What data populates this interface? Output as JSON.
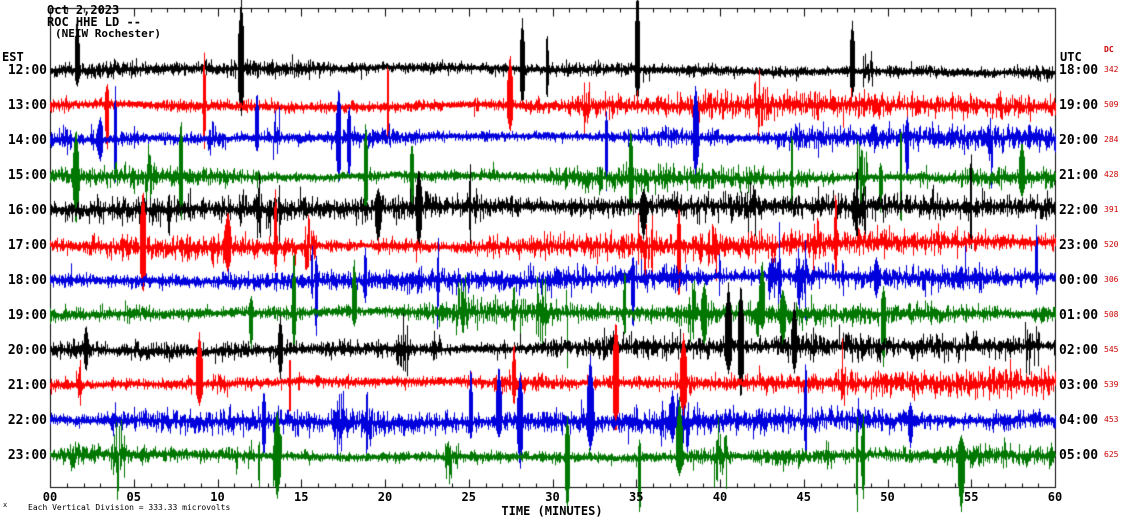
{
  "header": {
    "date": "Oct 2,2023",
    "station": "ROC HHE LD --",
    "location": "(NEIW Rochester)"
  },
  "axes": {
    "left_label": "EST",
    "right_label": "UTC",
    "dc_label": "DC",
    "x_axis_label": "TIME (MINUTES)",
    "x_ticks": [
      "00",
      "05",
      "10",
      "15",
      "20",
      "25",
      "30",
      "35",
      "40",
      "45",
      "50",
      "55",
      "60"
    ]
  },
  "footnote": {
    "marker": "x",
    "text": "Each Vertical Division = 333.33 microvolts"
  },
  "colors": {
    "black": "#000000",
    "red": "#ff0000",
    "blue": "#0000dd",
    "green": "#007700",
    "dc_text": "#cc0000",
    "axis": "#000000"
  },
  "chart_data": {
    "type": "line",
    "title": "ROC HHE LD -- (NEIW Rochester) seismogram heliplot, Oct 2,2023",
    "xlabel": "TIME (MINUTES)",
    "ylabel": "",
    "x_range_minutes": [
      0,
      60
    ],
    "x_tick_interval_minutes": 5,
    "minor_tick_interval_minutes": 1,
    "vertical_division_microvolts": 333.33,
    "trace_color_cycle": [
      "black",
      "red",
      "blue",
      "green"
    ],
    "description": "Twelve hourly seismogram traces of continuous high-amplitude noise with frequent spikes; one row per hour, 0-60 minutes per row.",
    "rows": [
      {
        "est": "12:00",
        "utc": "18:00",
        "dc": 342,
        "color": "black"
      },
      {
        "est": "13:00",
        "utc": "19:00",
        "dc": 509,
        "color": "red"
      },
      {
        "est": "14:00",
        "utc": "20:00",
        "dc": 284,
        "color": "blue"
      },
      {
        "est": "15:00",
        "utc": "21:00",
        "dc": 428,
        "color": "green"
      },
      {
        "est": "16:00",
        "utc": "22:00",
        "dc": 391,
        "color": "black"
      },
      {
        "est": "17:00",
        "utc": "23:00",
        "dc": 520,
        "color": "red"
      },
      {
        "est": "18:00",
        "utc": "00:00",
        "dc": 306,
        "color": "blue"
      },
      {
        "est": "19:00",
        "utc": "01:00",
        "dc": 508,
        "color": "green"
      },
      {
        "est": "20:00",
        "utc": "02:00",
        "dc": 545,
        "color": "black"
      },
      {
        "est": "21:00",
        "utc": "03:00",
        "dc": 539,
        "color": "red"
      },
      {
        "est": "22:00",
        "utc": "04:00",
        "dc": 453,
        "color": "blue"
      },
      {
        "est": "23:00",
        "utc": "05:00",
        "dc": 625,
        "color": "green"
      }
    ]
  }
}
